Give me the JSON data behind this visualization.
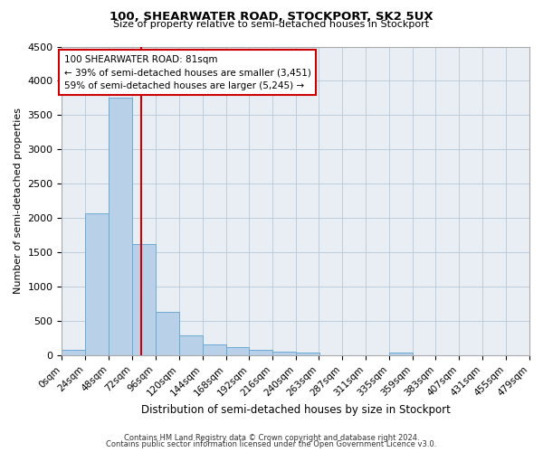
{
  "title": "100, SHEARWATER ROAD, STOCKPORT, SK2 5UX",
  "subtitle": "Size of property relative to semi-detached houses in Stockport",
  "xlabel": "Distribution of semi-detached houses by size in Stockport",
  "ylabel": "Number of semi-detached properties",
  "bin_edges": [
    0,
    24,
    48,
    72,
    96,
    120,
    144,
    168,
    192,
    216,
    240,
    263,
    287,
    311,
    335,
    359,
    383,
    407,
    431,
    455,
    479
  ],
  "bin_labels": [
    "0sqm",
    "24sqm",
    "48sqm",
    "72sqm",
    "96sqm",
    "120sqm",
    "144sqm",
    "168sqm",
    "192sqm",
    "216sqm",
    "240sqm",
    "263sqm",
    "287sqm",
    "311sqm",
    "335sqm",
    "359sqm",
    "383sqm",
    "407sqm",
    "431sqm",
    "455sqm",
    "479sqm"
  ],
  "bar_heights": [
    90,
    2070,
    3750,
    1630,
    640,
    290,
    160,
    120,
    90,
    60,
    50,
    0,
    0,
    0,
    40,
    0,
    0,
    0,
    0,
    0
  ],
  "bar_color": "#b8d0e8",
  "bar_edgecolor": "#6aaad4",
  "property_size": 81,
  "vline_x": 81,
  "vline_color": "#cc0000",
  "annotation_title": "100 SHEARWATER ROAD: 81sqm",
  "annotation_line1": "← 39% of semi-detached houses are smaller (3,451)",
  "annotation_line2": "59% of semi-detached houses are larger (5,245) →",
  "annotation_box_edgecolor": "#cc0000",
  "ylim": [
    0,
    4500
  ],
  "yticks": [
    0,
    500,
    1000,
    1500,
    2000,
    2500,
    3000,
    3500,
    4000,
    4500
  ],
  "footer_line1": "Contains HM Land Registry data © Crown copyright and database right 2024.",
  "footer_line2": "Contains public sector information licensed under the Open Government Licence v3.0.",
  "axes_facecolor": "#e8eef4",
  "fig_facecolor": "#ffffff"
}
